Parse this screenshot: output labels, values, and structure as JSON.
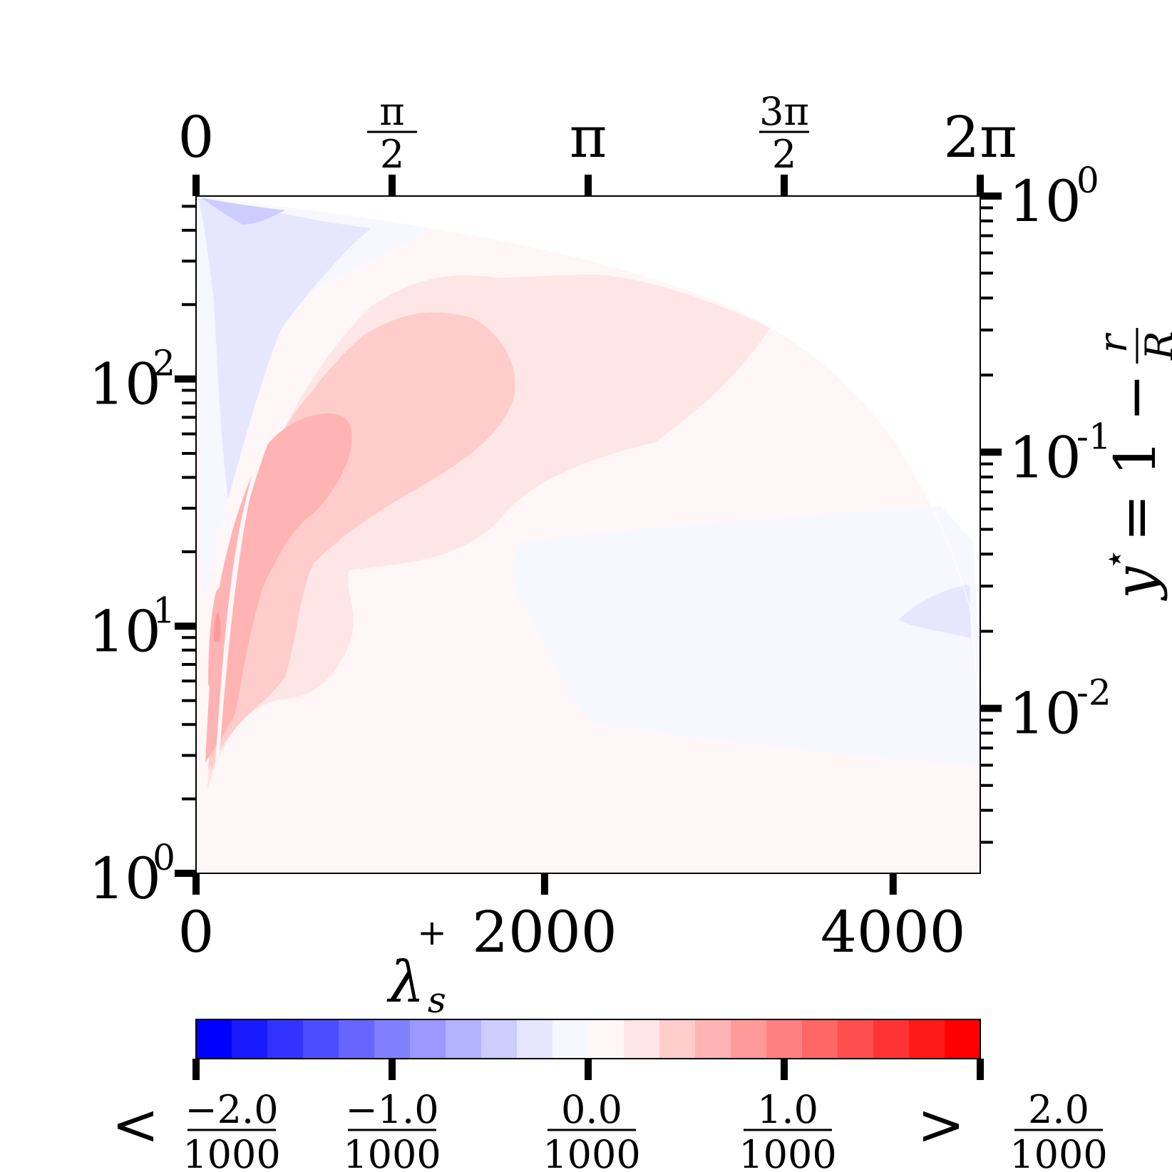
{
  "chart_data": {
    "type": "heatmap",
    "title": "",
    "bottom_axis": {
      "label": "λ",
      "label_sup": "+",
      "label_sub": "s",
      "range": [
        0,
        4500
      ],
      "ticks": [
        {
          "value": 0,
          "label": "0"
        },
        {
          "value": 2000,
          "label": "2000"
        },
        {
          "value": 4000,
          "label": "4000"
        }
      ]
    },
    "top_axis": {
      "range": [
        0,
        6.2832
      ],
      "ticks": [
        {
          "value": 0,
          "num": "0",
          "den": ""
        },
        {
          "value": 1.5708,
          "num": "π",
          "den": "2"
        },
        {
          "value": 3.1416,
          "num": "π",
          "den": ""
        },
        {
          "value": 4.7124,
          "num": "3π",
          "den": "2"
        },
        {
          "value": 6.2832,
          "num": "2π",
          "den": ""
        }
      ]
    },
    "left_axis": {
      "scale": "log",
      "range": [
        1,
        550
      ],
      "ticks": [
        {
          "value": 1,
          "base": "10",
          "exp": "0"
        },
        {
          "value": 10,
          "base": "10",
          "exp": "1"
        },
        {
          "value": 100,
          "base": "10",
          "exp": "2"
        }
      ]
    },
    "right_axis": {
      "scale": "log",
      "label_y": "y",
      "label_star": "⋆",
      "label_eq": "= 1 −",
      "label_frac_num": "r",
      "label_frac_den": "R",
      "range": [
        0.00227,
        1
      ],
      "ticks": [
        {
          "value": 1,
          "base": "10",
          "exp": "0"
        },
        {
          "value": 0.1,
          "base": "10",
          "exp": "-1"
        },
        {
          "value": 0.01,
          "base": "10",
          "exp": "-2"
        }
      ]
    },
    "colorbar": {
      "range": [
        -0.002,
        0.002
      ],
      "colors": [
        "#0000ff",
        "#1a1aff",
        "#3333ff",
        "#4d4dff",
        "#6666ff",
        "#8080ff",
        "#9999ff",
        "#b3b3ff",
        "#ccccff",
        "#e6e6ff",
        "#f7f7ff",
        "#fff7f7",
        "#ffe6e6",
        "#ffcccc",
        "#ffb3b3",
        "#ff9999",
        "#ff8080",
        "#ff6666",
        "#ff4d4d",
        "#ff3333",
        "#ff1a1a",
        "#ff0000"
      ],
      "ticks": [
        {
          "value": -0.002,
          "prefix": "<",
          "num": "−2.0",
          "den": "1000"
        },
        {
          "value": -0.001,
          "prefix": "",
          "num": "−1.0",
          "den": "1000"
        },
        {
          "value": 0.0,
          "prefix": "",
          "num": "0.0",
          "den": "1000"
        },
        {
          "value": 0.001,
          "prefix": "",
          "num": "1.0",
          "den": "1000"
        },
        {
          "value": 0.002,
          "prefix": ">",
          "num": "2.0",
          "den": "1000"
        }
      ]
    },
    "field_levels": {
      "background": 0.0001,
      "note": "contour values in colorbar units"
    }
  }
}
